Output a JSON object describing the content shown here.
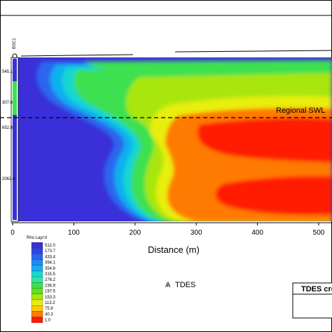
{
  "chart_data": {
    "type": "heatmap",
    "xlabel": "Distance (m)",
    "x_ticks": [
      0,
      100,
      200,
      300,
      400,
      500
    ],
    "xlim": [
      0,
      520
    ],
    "annotation": "Regional SWL",
    "borehole_label": "BSC1",
    "depth_labels": [
      "545.1",
      "307.6",
      "652.8",
      "2062.4"
    ],
    "legend": {
      "title": "Rho Layr'd",
      "values": [
        "512.0",
        "173.7",
        "433.4",
        "394.1",
        "354.8",
        "315.5",
        "276.2",
        "236.9",
        "197.5",
        "153.3",
        "113.2",
        "75.8",
        "40.3",
        "1.0"
      ],
      "colors": [
        "#3a2fd8",
        "#2d45e6",
        "#2a66ee",
        "#1f88f2",
        "#10b0f0",
        "#18d6d2",
        "#2fe6a0",
        "#3ee050",
        "#5fe020",
        "#a8e60f",
        "#e8ee10",
        "#ffc800",
        "#ff7a00",
        "#ff1a00"
      ]
    },
    "caption": "TDES",
    "box_title": "TDES cre"
  }
}
